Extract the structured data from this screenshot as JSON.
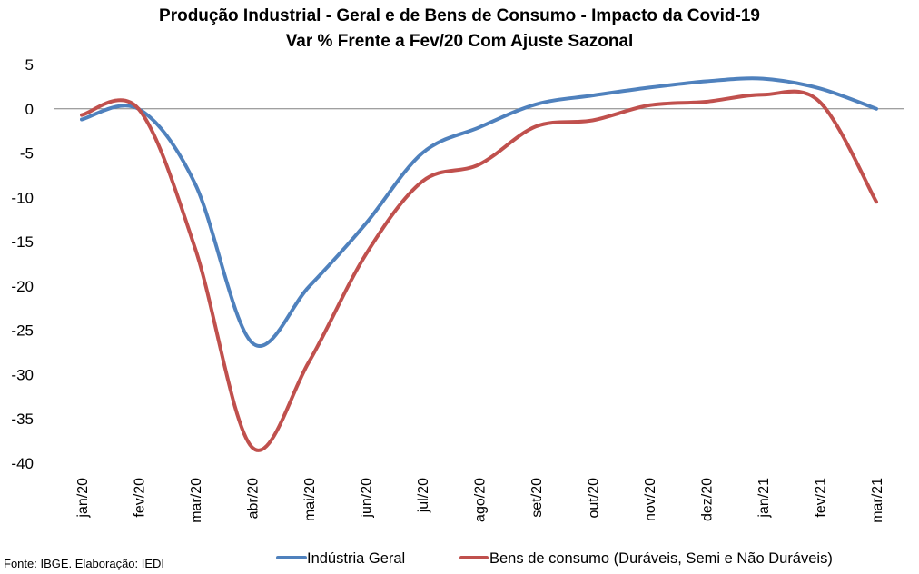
{
  "chart_data": {
    "type": "line",
    "title": "Produção Industrial - Geral e de Bens de Consumo - Impacto da Covid-19",
    "subtitle": "Var % Frente a Fev/20 Com Ajuste Sazonal",
    "categories": [
      "jan/20",
      "fev/20",
      "mar/20",
      "abr/20",
      "mai/20",
      "jun/20",
      "jul/20",
      "ago/20",
      "set/20",
      "out/20",
      "nov/20",
      "dez/20",
      "jan/21",
      "fev/21",
      "mar/21"
    ],
    "ylim": [
      -40,
      5
    ],
    "yticks": [
      "5",
      "0",
      "-5",
      "-10",
      "-15",
      "-20",
      "-25",
      "-30",
      "-35",
      "-40"
    ],
    "series": [
      {
        "name": "Indústria Geral",
        "color": "#4f81bd",
        "values": [
          -1.2,
          0,
          -8.5,
          -26.4,
          -20.1,
          -13.0,
          -5.0,
          -2.1,
          0.5,
          1.5,
          2.4,
          3.1,
          3.4,
          2.3,
          0
        ]
      },
      {
        "name": "Bens de consumo (Duráveis, Semi e Não Duráveis)",
        "color": "#c0504d",
        "values": [
          -0.7,
          0,
          -15.8,
          -38.2,
          -28.6,
          -16.5,
          -8.2,
          -6.3,
          -2.0,
          -1.3,
          0.4,
          0.8,
          1.6,
          0.8,
          -10.5
        ]
      }
    ],
    "grid": false,
    "legend_position": "bottom",
    "source": "Fonte: IBGE. Elaboração: IEDI"
  }
}
